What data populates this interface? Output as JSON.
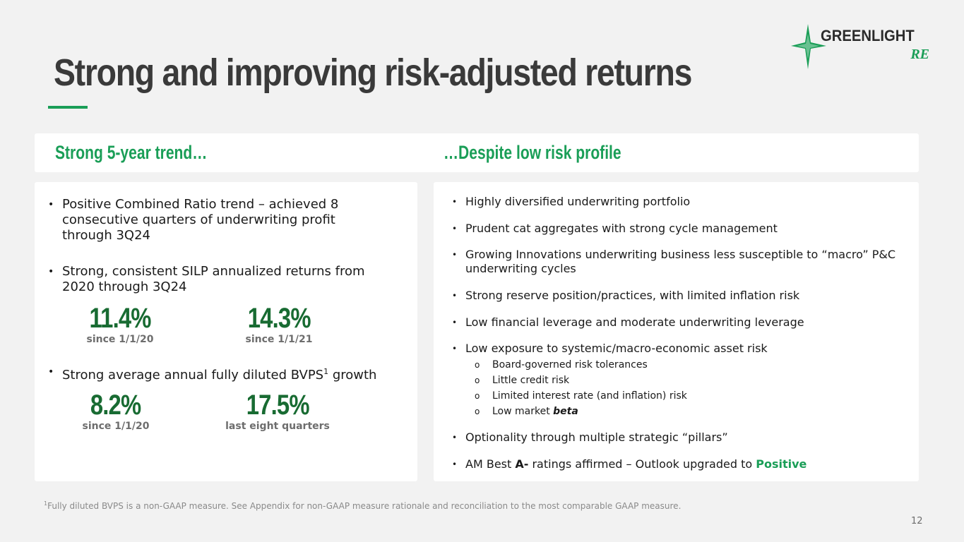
{
  "slide": {
    "title": "Strong and improving risk-adjusted returns",
    "page_number": "12"
  },
  "logo": {
    "name": "GREENLIGHT",
    "suffix": "RE"
  },
  "left": {
    "heading": "Strong 5-year trend…",
    "bullet1": [
      "Positive Combined Ratio trend – achieved 8",
      "consecutive quarters of underwriting profit",
      "through 3Q24"
    ],
    "bullet2": [
      "Strong, consistent SILP annualized returns from",
      "2020 through 3Q24"
    ],
    "silp_stats": [
      {
        "value": "11.4%",
        "label": "since 1/1/20"
      },
      {
        "value": "14.3%",
        "label": "since 1/1/21"
      }
    ],
    "bullet3": {
      "before": "Strong average annual fully diluted BVPS",
      "sup": "1",
      "after": " growth"
    },
    "bvps_stats": [
      {
        "value": "8.2%",
        "label": "since 1/1/20"
      },
      {
        "value": "17.5%",
        "label": "last eight quarters"
      }
    ]
  },
  "right": {
    "heading": "…Despite low risk profile",
    "bullets": [
      "Highly diversified underwriting portfolio",
      "Prudent cat aggregates with strong cycle management",
      "Growing Innovations underwriting business less susceptible to “macro” P&C underwriting cycles",
      "Strong reserve position/practices, with limited inflation risk",
      "Low financial leverage and moderate underwriting leverage",
      "Low exposure to systemic/macro-economic asset risk"
    ],
    "sub_bullets": [
      "Board-governed risk tolerances",
      "Little credit risk",
      "Limited interest rate (and inflation) risk",
      "Low market"
    ],
    "sub_bullet_emphasis": "beta",
    "bullet_pillars": "Optionality through multiple strategic “pillars”",
    "rating": {
      "prefix": "AM Best ",
      "grade": "A-",
      "middle": " ratings affirmed – Outlook upgraded to ",
      "outlook": "Positive"
    }
  },
  "footnote": {
    "marker": "1",
    "text": "Fully diluted BVPS is a non-GAAP measure. See Appendix for non-GAAP measure rationale and reconciliation to the most comparable GAAP measure."
  },
  "colors": {
    "accent_green": "#1a9e57",
    "stat_green": "#186b32",
    "title_gray": "#3a3a3a",
    "background": "#f2f2f2"
  }
}
